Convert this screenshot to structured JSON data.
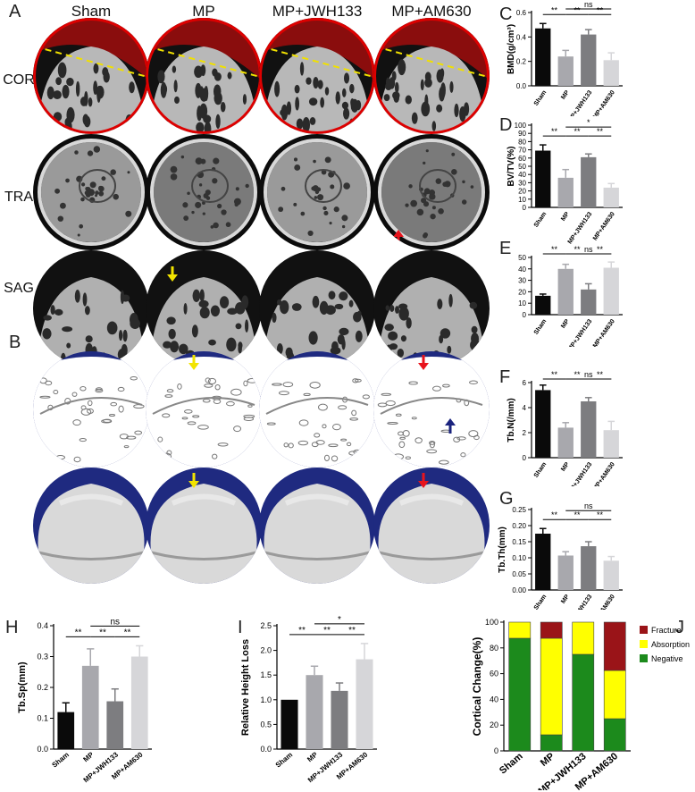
{
  "figure": {
    "panel_letters": [
      "A",
      "B",
      "C",
      "D",
      "E",
      "F",
      "G",
      "H",
      "I",
      "J"
    ],
    "columns": [
      "Sham",
      "MP",
      "MP+JWH133",
      "MP+AM630"
    ],
    "rows_a": [
      "COR",
      "TRA",
      "SAG"
    ]
  },
  "colors": {
    "black": "#0a0a0a",
    "mp": "#a8a8ad",
    "jwh": "#7d7d80",
    "am630": "#d6d6d9",
    "disc_blue": "#1f2a80",
    "arrow_yellow": "#f2e400",
    "arrow_red": "#e8141c",
    "arrow_navy": "#1a237e",
    "cortical_fracture": "#9a1418",
    "cortical_absorption": "#ffff00",
    "cortical_negative": "#1c8a1c"
  },
  "chart_data": [
    {
      "panel": "C",
      "type": "bar",
      "categories": [
        "Sham",
        "MP",
        "MP+JWH133",
        "MP+AM630"
      ],
      "values": [
        0.47,
        0.24,
        0.42,
        0.21
      ],
      "errors": [
        0.04,
        0.05,
        0.04,
        0.06
      ],
      "ylabel": "BMD(g/cm³)",
      "ylim": [
        0,
        0.6
      ],
      "yticks": [
        "0.0",
        "0.2",
        "0.4",
        "0.6"
      ],
      "sig": [
        {
          "a": 0,
          "b": 1,
          "label": "**",
          "level": 0
        },
        {
          "a": 1,
          "b": 3,
          "label": "ns",
          "level": 1
        },
        {
          "a": 1,
          "b": 2,
          "label": "**",
          "level": 0
        },
        {
          "a": 2,
          "b": 3,
          "label": "**",
          "level": 0
        }
      ]
    },
    {
      "panel": "D",
      "type": "bar",
      "categories": [
        "Sham",
        "MP",
        "MP+JWH133",
        "MP+AM630"
      ],
      "values": [
        69,
        36,
        61,
        24
      ],
      "errors": [
        7,
        10,
        4,
        5
      ],
      "ylabel": "BV/TV(%)",
      "ylim": [
        0,
        100
      ],
      "yticks": [
        "0",
        "10",
        "20",
        "30",
        "40",
        "50",
        "60",
        "70",
        "80",
        "90",
        "100"
      ],
      "sig": [
        {
          "a": 0,
          "b": 1,
          "label": "**",
          "level": 0
        },
        {
          "a": 1,
          "b": 3,
          "label": "*",
          "level": 1
        },
        {
          "a": 1,
          "b": 2,
          "label": "**",
          "level": 0
        },
        {
          "a": 2,
          "b": 3,
          "label": "**",
          "level": 0
        }
      ]
    },
    {
      "panel": "E",
      "type": "bar",
      "categories": [
        "Sham",
        "MP",
        "MP+JWH133",
        "MP+AM630"
      ],
      "values": [
        16.5,
        40,
        22,
        41
      ],
      "errors": [
        1.5,
        4,
        5,
        5
      ],
      "ylabel": "",
      "ylim": [
        0,
        50
      ],
      "yticks": [
        "0",
        "10",
        "20",
        "30",
        "40",
        "50"
      ],
      "sig": [
        {
          "a": 0,
          "b": 1,
          "label": "**",
          "level": 0
        },
        {
          "a": 1,
          "b": 3,
          "label": "ns",
          "level": 1
        },
        {
          "a": 1,
          "b": 2,
          "label": "**",
          "level": 0
        },
        {
          "a": 2,
          "b": 3,
          "label": "**",
          "level": 0
        }
      ]
    },
    {
      "panel": "F",
      "type": "bar",
      "categories": [
        "Sham",
        "MP",
        "MP+JWH133",
        "MP+AM630"
      ],
      "values": [
        5.4,
        2.4,
        4.5,
        2.2
      ],
      "errors": [
        0.4,
        0.4,
        0.3,
        0.7
      ],
      "ylabel": "Tb.N(/mm)",
      "ylim": [
        0,
        6
      ],
      "yticks": [
        "0",
        "2",
        "4",
        "6"
      ],
      "sig": [
        {
          "a": 0,
          "b": 1,
          "label": "**",
          "level": 0
        },
        {
          "a": 1,
          "b": 3,
          "label": "ns",
          "level": 1
        },
        {
          "a": 1,
          "b": 2,
          "label": "**",
          "level": 0
        },
        {
          "a": 2,
          "b": 3,
          "label": "**",
          "level": 0
        }
      ]
    },
    {
      "panel": "G",
      "type": "bar",
      "categories": [
        "Sham",
        "MP",
        "MP+JWH133",
        "MP+AM630"
      ],
      "values": [
        0.175,
        0.107,
        0.136,
        0.091
      ],
      "errors": [
        0.016,
        0.012,
        0.014,
        0.013
      ],
      "ylabel": "Tb.Th(mm)",
      "ylim": [
        0,
        0.25
      ],
      "yticks": [
        "0.00",
        "0.05",
        "0.10",
        "0.15",
        "0.20",
        "0.25"
      ],
      "sig": [
        {
          "a": 0,
          "b": 1,
          "label": "**",
          "level": 0
        },
        {
          "a": 1,
          "b": 3,
          "label": "ns",
          "level": 1
        },
        {
          "a": 1,
          "b": 2,
          "label": "**",
          "level": 0
        },
        {
          "a": 2,
          "b": 3,
          "label": "**",
          "level": 0
        }
      ]
    },
    {
      "panel": "H",
      "type": "bar",
      "categories": [
        "Sham",
        "MP",
        "MP+JWH133",
        "MP+AM630"
      ],
      "values": [
        0.12,
        0.27,
        0.155,
        0.3
      ],
      "errors": [
        0.03,
        0.055,
        0.04,
        0.035
      ],
      "ylabel": "Tb.Sp(mm)",
      "ylim": [
        0,
        0.4
      ],
      "yticks": [
        "0.0",
        "0.1",
        "0.2",
        "0.3",
        "0.4"
      ],
      "sig": [
        {
          "a": 0,
          "b": 1,
          "label": "**",
          "level": 0
        },
        {
          "a": 1,
          "b": 3,
          "label": "ns",
          "level": 1
        },
        {
          "a": 1,
          "b": 2,
          "label": "**",
          "level": 0
        },
        {
          "a": 2,
          "b": 3,
          "label": "**",
          "level": 0
        }
      ]
    },
    {
      "panel": "I",
      "type": "bar",
      "categories": [
        "Sham",
        "MP",
        "MP+JWH133",
        "MP+AM630"
      ],
      "values": [
        1.0,
        1.5,
        1.18,
        1.82
      ],
      "errors": [
        0.0,
        0.18,
        0.16,
        0.32
      ],
      "ylabel": "Relative Height Loss",
      "ylim": [
        0,
        2.5
      ],
      "yticks": [
        "0.0",
        "0.5",
        "1.0",
        "1.5",
        "2.0",
        "2.5"
      ],
      "sig": [
        {
          "a": 0,
          "b": 1,
          "label": "**",
          "level": 0
        },
        {
          "a": 1,
          "b": 3,
          "label": "*",
          "level": 1
        },
        {
          "a": 1,
          "b": 2,
          "label": "**",
          "level": 0
        },
        {
          "a": 2,
          "b": 3,
          "label": "**",
          "level": 0
        }
      ]
    },
    {
      "panel": "J",
      "type": "bar",
      "stacked": true,
      "categories": [
        "Sham",
        "MP",
        "MP+JWH133",
        "MP+AM630"
      ],
      "ylabel": "Cortical Change(%)",
      "ylim": [
        0,
        100
      ],
      "yticks": [
        "0",
        "20",
        "40",
        "60",
        "80",
        "100"
      ],
      "legend": "right",
      "series": [
        {
          "name": "Negative",
          "values": [
            87.5,
            12.5,
            75,
            25
          ]
        },
        {
          "name": "Absorption",
          "values": [
            12.5,
            75,
            25,
            37.5
          ]
        },
        {
          "name": "Fracture",
          "values": [
            0,
            12.5,
            0,
            37.5
          ]
        }
      ]
    }
  ]
}
